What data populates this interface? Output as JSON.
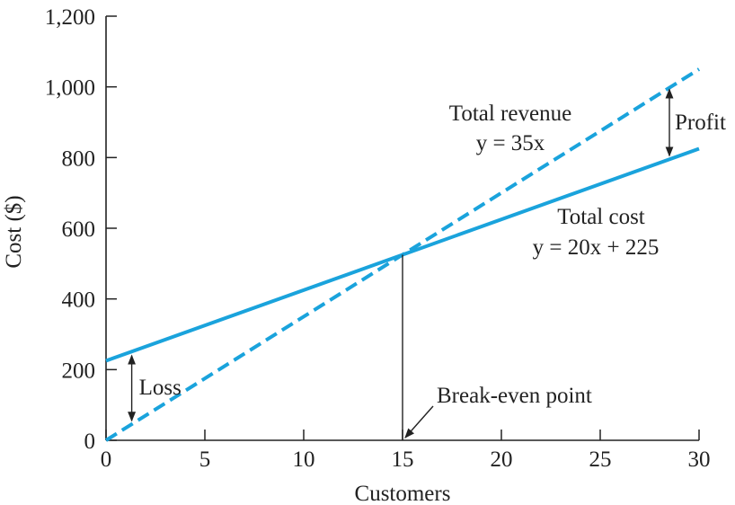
{
  "chart_data": {
    "type": "line",
    "title": "",
    "xlabel": "Customers",
    "ylabel": "Cost ($)",
    "xlim": [
      0,
      30
    ],
    "ylim": [
      0,
      1200
    ],
    "x_ticks": [
      0,
      5,
      10,
      15,
      20,
      25,
      30
    ],
    "y_ticks": [
      0,
      200,
      400,
      600,
      800,
      1000,
      1200
    ],
    "x_tick_labels": [
      "0",
      "5",
      "10",
      "15",
      "20",
      "25",
      "30"
    ],
    "y_tick_labels": [
      "0",
      "200",
      "400",
      "600",
      "800",
      "1,000",
      "1,200"
    ],
    "grid": false,
    "line_color": "#1aa3dc",
    "series": [
      {
        "name": "Total revenue",
        "equation": "y = 35x",
        "style": "dashed",
        "x": [
          0,
          30
        ],
        "y": [
          0,
          1050
        ]
      },
      {
        "name": "Total cost",
        "equation": "y = 20x + 225",
        "style": "solid",
        "x": [
          0,
          30
        ],
        "y": [
          225,
          825
        ]
      }
    ],
    "annotations": {
      "loss": {
        "label": "Loss",
        "x": 1.3,
        "y_from": 45,
        "y_to": 250
      },
      "profit": {
        "label": "Profit",
        "x": 28.5,
        "y_from": 800,
        "y_to": 998
      },
      "break_even": {
        "label": "Break-even point",
        "x": 15,
        "y": 525
      }
    }
  }
}
